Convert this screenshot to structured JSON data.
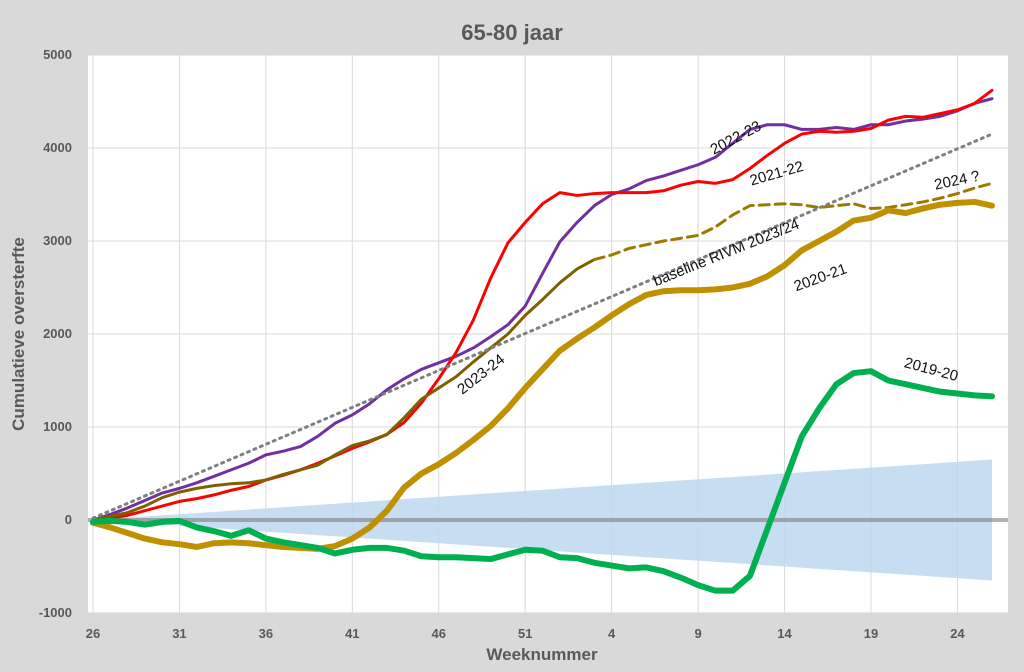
{
  "chart_data": {
    "type": "line",
    "title": "65-80 jaar",
    "xlabel": "Weeknummer",
    "ylabel": "Cumulatieve oversterfte",
    "ylim": [
      -1000,
      5000
    ],
    "yticks": [
      -1000,
      0,
      1000,
      2000,
      3000,
      4000,
      5000
    ],
    "x_index_range": [
      0,
      52
    ],
    "xticks": [
      {
        "index": 0,
        "label": "26"
      },
      {
        "index": 5,
        "label": "31"
      },
      {
        "index": 10,
        "label": "36"
      },
      {
        "index": 15,
        "label": "41"
      },
      {
        "index": 20,
        "label": "46"
      },
      {
        "index": 25,
        "label": "51"
      },
      {
        "index": 30,
        "label": "4"
      },
      {
        "index": 35,
        "label": "9"
      },
      {
        "index": 40,
        "label": "14"
      },
      {
        "index": 45,
        "label": "19"
      },
      {
        "index": 50,
        "label": "24"
      }
    ],
    "grid": true,
    "band": {
      "color": "#bdd7ee",
      "x_start": 0,
      "x_end": 52,
      "upper_start": 0,
      "upper_end": 650,
      "lower_start": 0,
      "lower_end": -650
    },
    "zero_line_color": "#7f7f7f",
    "series": [
      {
        "name": "2022-23",
        "color": "#7030a0",
        "width": 3,
        "dash": "",
        "x": [
          0,
          1,
          2,
          3,
          4,
          5,
          6,
          7,
          8,
          9,
          10,
          11,
          12,
          13,
          14,
          15,
          16,
          17,
          18,
          19,
          20,
          21,
          22,
          23,
          24,
          25,
          26,
          27,
          28,
          29,
          30,
          31,
          32,
          33,
          34,
          35,
          36,
          37,
          38,
          39,
          40,
          41,
          42,
          43,
          44,
          45,
          46,
          47,
          48,
          49,
          50,
          51,
          52
        ],
        "y": [
          0,
          60,
          130,
          210,
          290,
          340,
          400,
          470,
          540,
          610,
          700,
          740,
          790,
          900,
          1040,
          1130,
          1250,
          1400,
          1520,
          1620,
          1690,
          1760,
          1850,
          1970,
          2100,
          2300,
          2650,
          2990,
          3200,
          3380,
          3500,
          3560,
          3650,
          3700,
          3760,
          3820,
          3900,
          4050,
          4200,
          4250,
          4250,
          4200,
          4200,
          4220,
          4200,
          4250,
          4250,
          4290,
          4310,
          4340,
          4400,
          4480,
          4530
        ]
      },
      {
        "name": "2021-22",
        "color": "#ff0000",
        "width": 3,
        "dash": "",
        "x": [
          0,
          1,
          2,
          3,
          4,
          5,
          6,
          7,
          8,
          9,
          10,
          11,
          12,
          13,
          14,
          15,
          16,
          17,
          18,
          19,
          20,
          21,
          22,
          23,
          24,
          25,
          26,
          27,
          28,
          29,
          30,
          31,
          32,
          33,
          34,
          35,
          36,
          37,
          38,
          39,
          40,
          41,
          42,
          43,
          44,
          45,
          46,
          47,
          48,
          49,
          50,
          51,
          52
        ],
        "y": [
          0,
          20,
          50,
          100,
          150,
          200,
          230,
          270,
          320,
          360,
          430,
          480,
          540,
          610,
          690,
          770,
          840,
          920,
          1050,
          1260,
          1520,
          1800,
          2150,
          2600,
          2980,
          3200,
          3400,
          3520,
          3490,
          3510,
          3520,
          3520,
          3520,
          3540,
          3600,
          3640,
          3620,
          3660,
          3780,
          3920,
          4050,
          4150,
          4180,
          4170,
          4180,
          4210,
          4300,
          4340,
          4330,
          4370,
          4410,
          4480,
          4620
        ]
      },
      {
        "name": "2023-24",
        "color": "#7f6000",
        "width": 3,
        "dash": "",
        "x": [
          0,
          1,
          2,
          3,
          4,
          5,
          6,
          7,
          8,
          9,
          10,
          11,
          12,
          13,
          14,
          15,
          16,
          17,
          18,
          19,
          20,
          21,
          22,
          23,
          24,
          25,
          26,
          27,
          28,
          29
        ],
        "y": [
          0,
          40,
          80,
          150,
          240,
          300,
          340,
          370,
          390,
          400,
          430,
          490,
          540,
          590,
          700,
          800,
          850,
          920,
          1100,
          1300,
          1420,
          1540,
          1700,
          1850,
          2000,
          2200,
          2370,
          2550,
          2700,
          2800
        ]
      },
      {
        "name": "2024 ?",
        "color": "#9c7a00",
        "width": 3,
        "dash": "10,6",
        "x": [
          29,
          30,
          31,
          32,
          33,
          34,
          35,
          36,
          37,
          38,
          39,
          40,
          41,
          42,
          43,
          44,
          45,
          46,
          47,
          48,
          49,
          50,
          51,
          52
        ],
        "y": [
          2800,
          2850,
          2920,
          2960,
          3000,
          3030,
          3060,
          3150,
          3280,
          3380,
          3390,
          3400,
          3390,
          3360,
          3380,
          3400,
          3350,
          3360,
          3390,
          3420,
          3460,
          3510,
          3570,
          3620
        ]
      },
      {
        "name": "baseline RIVM 2023/24",
        "color": "#7f7f7f",
        "width": 3,
        "dash": "2,5",
        "x": [
          0,
          52
        ],
        "y": [
          20,
          4150
        ]
      },
      {
        "name": "2020-21",
        "color": "#bf9000",
        "width": 6,
        "dash": "",
        "x": [
          0,
          1,
          2,
          3,
          4,
          5,
          6,
          7,
          8,
          9,
          10,
          11,
          12,
          13,
          14,
          15,
          16,
          17,
          18,
          19,
          20,
          21,
          22,
          23,
          24,
          25,
          26,
          27,
          28,
          29,
          30,
          31,
          32,
          33,
          34,
          35,
          36,
          37,
          38,
          39,
          40,
          41,
          42,
          43,
          44,
          45,
          46,
          47,
          48,
          49,
          50,
          51,
          52
        ],
        "y": [
          -30,
          -80,
          -140,
          -200,
          -240,
          -260,
          -290,
          -250,
          -240,
          -250,
          -270,
          -290,
          -300,
          -310,
          -280,
          -200,
          -80,
          100,
          350,
          500,
          600,
          720,
          860,
          1010,
          1200,
          1420,
          1620,
          1820,
          1950,
          2070,
          2200,
          2320,
          2420,
          2460,
          2470,
          2470,
          2480,
          2500,
          2540,
          2620,
          2740,
          2900,
          3000,
          3100,
          3220,
          3250,
          3330,
          3300,
          3350,
          3390,
          3410,
          3420,
          3380
        ]
      },
      {
        "name": "2019-20",
        "color": "#00b050",
        "width": 6,
        "dash": "",
        "x": [
          0,
          1,
          2,
          3,
          4,
          5,
          6,
          7,
          8,
          9,
          10,
          11,
          12,
          13,
          14,
          15,
          16,
          17,
          18,
          19,
          20,
          21,
          22,
          23,
          24,
          25,
          26,
          27,
          28,
          29,
          30,
          31,
          32,
          33,
          34,
          35,
          36,
          37,
          38,
          39,
          40,
          41,
          42,
          43,
          44,
          45,
          46,
          47,
          48,
          49,
          50,
          51,
          52
        ],
        "y": [
          -20,
          -10,
          -20,
          -50,
          -20,
          -10,
          -80,
          -120,
          -170,
          -110,
          -200,
          -240,
          -270,
          -300,
          -360,
          -320,
          -300,
          -300,
          -330,
          -390,
          -400,
          -400,
          -410,
          -420,
          -370,
          -320,
          -330,
          -400,
          -410,
          -460,
          -490,
          -520,
          -510,
          -550,
          -620,
          -700,
          -760,
          -760,
          -600,
          -100,
          400,
          900,
          1200,
          1460,
          1580,
          1600,
          1500,
          1460,
          1420,
          1380,
          1360,
          1340,
          1330
        ]
      }
    ],
    "annotations": [
      {
        "text": "2022-23",
        "series": "2022-23"
      },
      {
        "text": "2021-22",
        "series": "2021-22"
      },
      {
        "text": "2024 ?",
        "series": "2024 ?"
      },
      {
        "text": "baseline RIVM 2023/24",
        "series": "baseline RIVM 2023/24"
      },
      {
        "text": "2020-21",
        "series": "2020-21"
      },
      {
        "text": "2023-24",
        "series": "2023-24"
      },
      {
        "text": "2019-20",
        "series": "2019-20"
      }
    ]
  }
}
